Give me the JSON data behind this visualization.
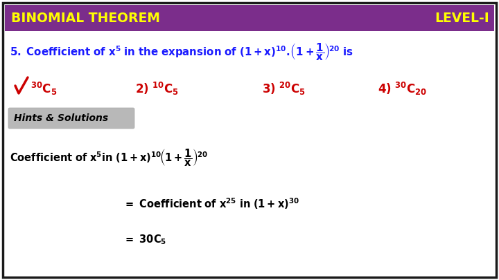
{
  "bg_color": "#ffffff",
  "border_color": "#1a1a1a",
  "header_bg": "#7b2d8b",
  "header_text_color": "#ffff00",
  "header_left": "BINOMIAL THEOREM",
  "header_right": "LEVEL-I",
  "question_color": "#1a1aff",
  "option_color": "#cc0000",
  "hints_label": "Hints & Solutions",
  "hints_bg": "#b8b8b8",
  "sol_color": "#000000",
  "fig_width": 7.2,
  "fig_height": 4.05,
  "dpi": 100
}
